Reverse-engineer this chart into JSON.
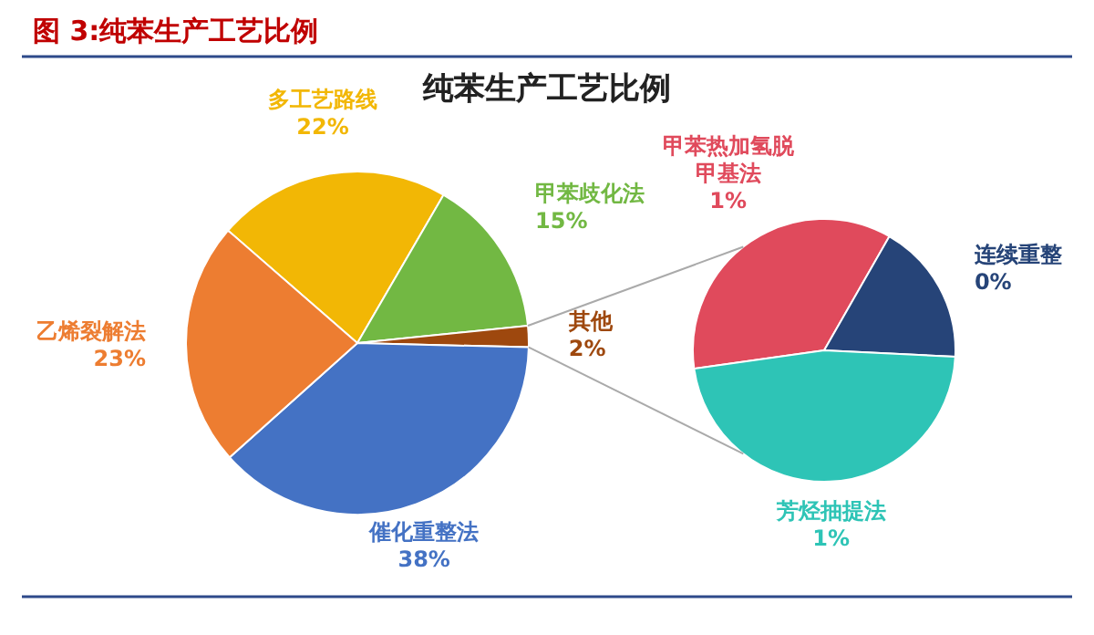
{
  "chart_data": [
    {
      "type": "pie",
      "title": "图 3:纯苯生产工艺比例",
      "subtitle": "纯苯生产工艺比例",
      "categories": [
        "多工艺路线",
        "甲苯歧化法",
        "其他",
        "催化重整法",
        "乙烯裂解法"
      ],
      "values": [
        22,
        15,
        2,
        38,
        23
      ],
      "colors": [
        "#f2b705",
        "#72b843",
        "#9e480e",
        "#4472c4",
        "#ed7d31"
      ],
      "value_labels": [
        "22%",
        "15%",
        "2%",
        "38%",
        "23%"
      ]
    },
    {
      "type": "pie",
      "categories": [
        "甲苯热加氢脱甲基法",
        "连续重整",
        "芳烃抽提法"
      ],
      "values": [
        0.71,
        0.35,
        0.94
      ],
      "colors": [
        "#e04a5c",
        "#264478",
        "#2ec4b6"
      ],
      "value_labels": [
        "1%",
        "0%",
        "1%"
      ]
    }
  ]
}
